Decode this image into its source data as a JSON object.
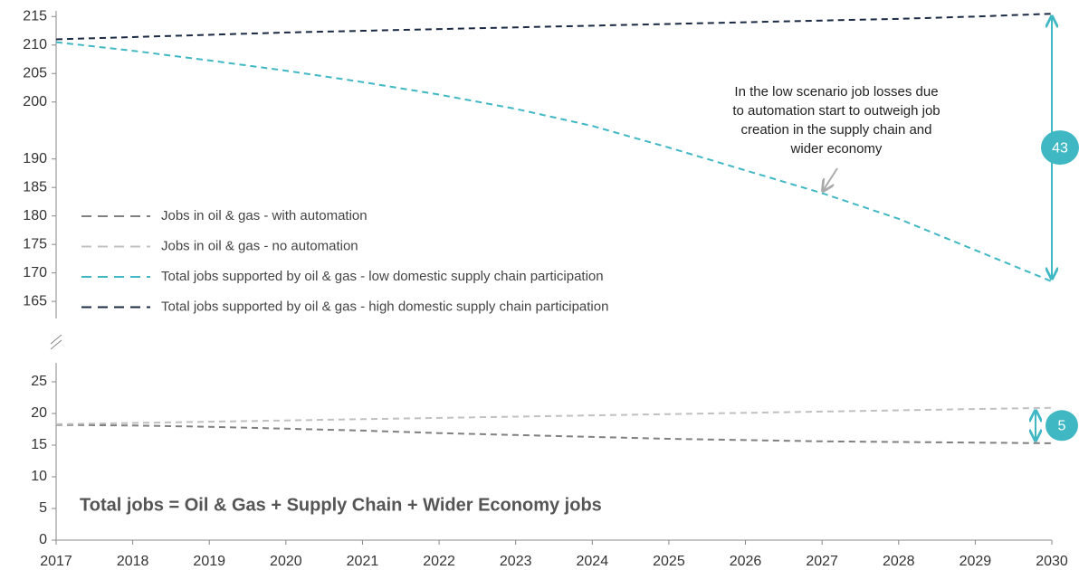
{
  "chart_data": [
    {
      "type": "line",
      "x": [
        2017,
        2018,
        2019,
        2020,
        2021,
        2022,
        2023,
        2024,
        2025,
        2026,
        2027,
        2028,
        2029,
        2030
      ],
      "xlim": [
        2017,
        2030
      ],
      "ylim": [
        162,
        216
      ],
      "yticks": [
        165,
        170,
        175,
        180,
        185,
        190,
        200,
        205,
        210,
        215
      ],
      "grid": false,
      "series": [
        {
          "name": "Total jobs supported by oil & gas - low domestic supply chain participation",
          "color": "#40b8c4",
          "values": [
            210.5,
            209,
            207.3,
            205.5,
            203.5,
            201.3,
            198.8,
            195.8,
            192,
            188,
            184,
            179.5,
            174,
            168.5
          ]
        },
        {
          "name": "Total jobs supported by oil & gas - high domestic supply chain participation",
          "color": "#1b2a44",
          "values": [
            211,
            211.4,
            211.8,
            212.2,
            212.5,
            212.8,
            213.1,
            213.4,
            213.7,
            214,
            214.3,
            214.6,
            215,
            215.5
          ]
        }
      ],
      "gap": 43,
      "annotation": [
        "In the low scenario job losses due",
        "to automation start to outweigh job",
        "creation in the supply chain and",
        "wider economy"
      ]
    },
    {
      "type": "line",
      "x": [
        2017,
        2018,
        2019,
        2020,
        2021,
        2022,
        2023,
        2024,
        2025,
        2026,
        2027,
        2028,
        2029,
        2030
      ],
      "xlim": [
        2017,
        2030
      ],
      "xticks": [
        2017,
        2018,
        2019,
        2020,
        2021,
        2022,
        2023,
        2024,
        2025,
        2026,
        2027,
        2028,
        2029,
        2030
      ],
      "ylim": [
        0,
        28
      ],
      "yticks": [
        0,
        5,
        10,
        15,
        20,
        25
      ],
      "grid": false,
      "series": [
        {
          "name": "Jobs in oil & gas - with automation",
          "color": "#808080",
          "values": [
            18.2,
            18.1,
            17.9,
            17.6,
            17.3,
            16.9,
            16.6,
            16.3,
            16,
            15.8,
            15.6,
            15.5,
            15.4,
            15.3
          ]
        },
        {
          "name": "Jobs in oil & gas - no automation",
          "color": "#c0c0c0",
          "values": [
            18.3,
            18.5,
            18.7,
            18.9,
            19.1,
            19.3,
            19.5,
            19.7,
            19.9,
            20.1,
            20.3,
            20.5,
            20.7,
            20.9
          ]
        }
      ],
      "gap": 5,
      "note": "Total jobs = Oil & Gas + Supply Chain + Wider Economy jobs"
    }
  ]
}
